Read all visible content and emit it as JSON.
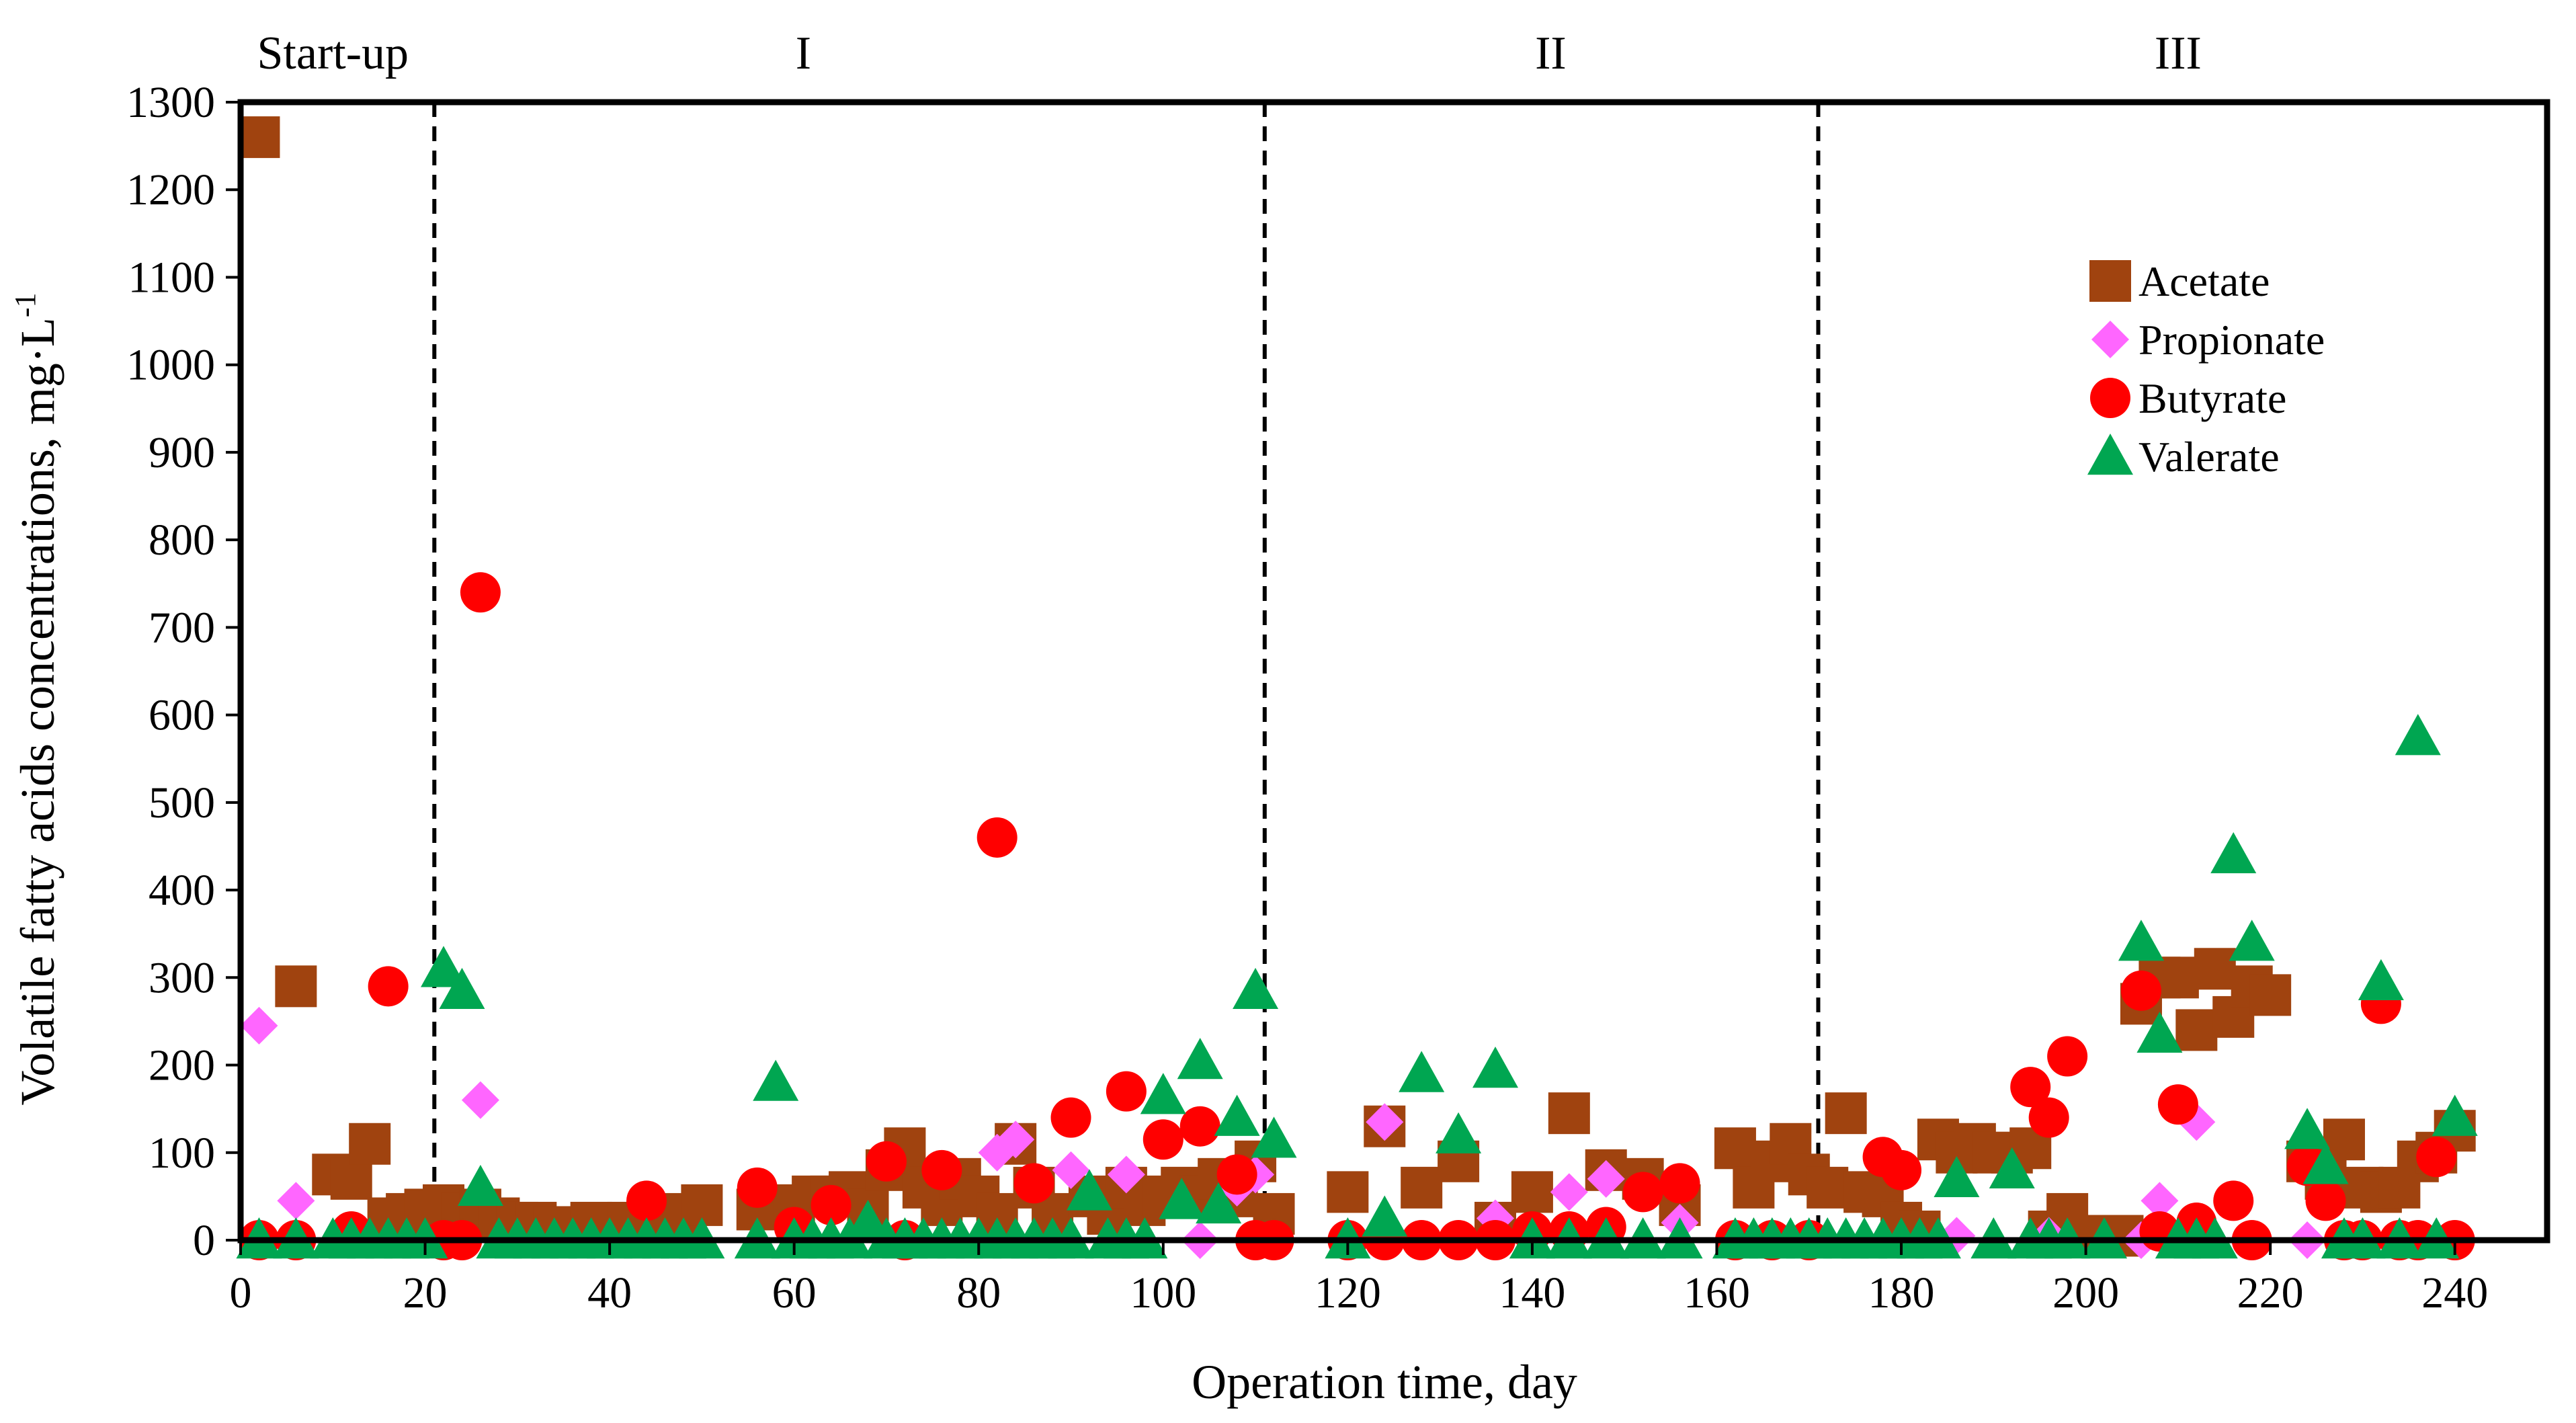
{
  "chart_data": {
    "type": "scatter",
    "title": "",
    "xlabel": "Operation time, day",
    "ylabel": "Volatile fatty acids concentrations, mg·L",
    "ylabel_superscript": "-1",
    "xlim": [
      0,
      250
    ],
    "ylim": [
      0,
      1300
    ],
    "xticks": [
      0,
      20,
      40,
      60,
      80,
      100,
      120,
      140,
      160,
      180,
      200,
      220,
      240
    ],
    "yticks": [
      0,
      100,
      200,
      300,
      400,
      500,
      600,
      700,
      800,
      900,
      1000,
      1100,
      1200,
      1300
    ],
    "grid": false,
    "legend_position": "top-right",
    "phase_boundaries": [
      21,
      111,
      171
    ],
    "phases": [
      {
        "label": "Start-up",
        "center": 10
      },
      {
        "label": "I",
        "center": 61
      },
      {
        "label": "II",
        "center": 142
      },
      {
        "label": "III",
        "center": 210
      }
    ],
    "series": [
      {
        "name": "Acetate",
        "marker": "square",
        "color": "#A0430F",
        "points": [
          [
            2,
            1260
          ],
          [
            6,
            290
          ],
          [
            10,
            75
          ],
          [
            12,
            70
          ],
          [
            14,
            110
          ],
          [
            16,
            25
          ],
          [
            18,
            30
          ],
          [
            20,
            35
          ],
          [
            22,
            40
          ],
          [
            24,
            30
          ],
          [
            26,
            35
          ],
          [
            28,
            25
          ],
          [
            30,
            20
          ],
          [
            32,
            20
          ],
          [
            34,
            15
          ],
          [
            36,
            15
          ],
          [
            38,
            20
          ],
          [
            40,
            15
          ],
          [
            42,
            20
          ],
          [
            44,
            20
          ],
          [
            46,
            20
          ],
          [
            48,
            30
          ],
          [
            50,
            40
          ],
          [
            56,
            35
          ],
          [
            60,
            40
          ],
          [
            62,
            50
          ],
          [
            64,
            50
          ],
          [
            66,
            55
          ],
          [
            68,
            35
          ],
          [
            70,
            80
          ],
          [
            72,
            105
          ],
          [
            74,
            60
          ],
          [
            76,
            40
          ],
          [
            78,
            70
          ],
          [
            80,
            50
          ],
          [
            82,
            30
          ],
          [
            84,
            110
          ],
          [
            86,
            60
          ],
          [
            88,
            30
          ],
          [
            92,
            50
          ],
          [
            94,
            30
          ],
          [
            96,
            60
          ],
          [
            98,
            40
          ],
          [
            100,
            50
          ],
          [
            102,
            60
          ],
          [
            104,
            50
          ],
          [
            106,
            70
          ],
          [
            108,
            50
          ],
          [
            110,
            90
          ],
          [
            112,
            30
          ],
          [
            120,
            55
          ],
          [
            124,
            130
          ],
          [
            128,
            60
          ],
          [
            132,
            90
          ],
          [
            136,
            20
          ],
          [
            140,
            55
          ],
          [
            144,
            145
          ],
          [
            148,
            80
          ],
          [
            152,
            70
          ],
          [
            156,
            40
          ],
          [
            162,
            105
          ],
          [
            164,
            60
          ],
          [
            166,
            90
          ],
          [
            168,
            110
          ],
          [
            170,
            75
          ],
          [
            172,
            60
          ],
          [
            174,
            145
          ],
          [
            176,
            55
          ],
          [
            178,
            50
          ],
          [
            180,
            20
          ],
          [
            182,
            10
          ],
          [
            184,
            115
          ],
          [
            186,
            100
          ],
          [
            188,
            110
          ],
          [
            190,
            100
          ],
          [
            192,
            100
          ],
          [
            194,
            105
          ],
          [
            196,
            10
          ],
          [
            198,
            30
          ],
          [
            200,
            5
          ],
          [
            204,
            5
          ],
          [
            206,
            270
          ],
          [
            208,
            300
          ],
          [
            210,
            300
          ],
          [
            212,
            240
          ],
          [
            214,
            310
          ],
          [
            216,
            255
          ],
          [
            218,
            290
          ],
          [
            220,
            280
          ],
          [
            224,
            90
          ],
          [
            226,
            70
          ],
          [
            228,
            115
          ],
          [
            230,
            60
          ],
          [
            232,
            55
          ],
          [
            234,
            60
          ],
          [
            236,
            90
          ],
          [
            238,
            100
          ],
          [
            240,
            125
          ]
        ]
      },
      {
        "name": "Propionate",
        "marker": "diamond",
        "color": "#FF66FF",
        "points": [
          [
            2,
            245
          ],
          [
            6,
            45
          ],
          [
            26,
            160
          ],
          [
            82,
            100
          ],
          [
            84,
            115
          ],
          [
            90,
            80
          ],
          [
            96,
            75
          ],
          [
            104,
            0
          ],
          [
            108,
            60
          ],
          [
            110,
            75
          ],
          [
            124,
            135
          ],
          [
            136,
            25
          ],
          [
            144,
            55
          ],
          [
            148,
            70
          ],
          [
            156,
            20
          ],
          [
            186,
            5
          ],
          [
            196,
            5
          ],
          [
            206,
            0
          ],
          [
            208,
            45
          ],
          [
            212,
            135
          ],
          [
            224,
            0
          ]
        ]
      },
      {
        "name": "Butyrate",
        "marker": "circle",
        "color": "#FF0000",
        "points": [
          [
            2,
            0
          ],
          [
            6,
            0
          ],
          [
            12,
            10
          ],
          [
            16,
            290
          ],
          [
            22,
            0
          ],
          [
            24,
            0
          ],
          [
            26,
            740
          ],
          [
            44,
            45
          ],
          [
            56,
            60
          ],
          [
            60,
            15
          ],
          [
            64,
            40
          ],
          [
            70,
            90
          ],
          [
            72,
            0
          ],
          [
            76,
            80
          ],
          [
            82,
            460
          ],
          [
            86,
            65
          ],
          [
            90,
            140
          ],
          [
            96,
            170
          ],
          [
            100,
            115
          ],
          [
            104,
            130
          ],
          [
            108,
            75
          ],
          [
            110,
            0
          ],
          [
            112,
            0
          ],
          [
            120,
            0
          ],
          [
            124,
            0
          ],
          [
            128,
            0
          ],
          [
            132,
            0
          ],
          [
            136,
            0
          ],
          [
            140,
            10
          ],
          [
            144,
            10
          ],
          [
            148,
            15
          ],
          [
            152,
            55
          ],
          [
            156,
            65
          ],
          [
            162,
            0
          ],
          [
            166,
            0
          ],
          [
            170,
            0
          ],
          [
            178,
            95
          ],
          [
            180,
            80
          ],
          [
            194,
            175
          ],
          [
            196,
            140
          ],
          [
            198,
            210
          ],
          [
            206,
            285
          ],
          [
            208,
            10
          ],
          [
            210,
            155
          ],
          [
            212,
            20
          ],
          [
            216,
            45
          ],
          [
            218,
            0
          ],
          [
            224,
            85
          ],
          [
            226,
            45
          ],
          [
            228,
            0
          ],
          [
            230,
            0
          ],
          [
            232,
            270
          ],
          [
            234,
            0
          ],
          [
            236,
            0
          ],
          [
            238,
            95
          ],
          [
            240,
            0
          ]
        ]
      },
      {
        "name": "Valerate",
        "marker": "triangle",
        "color": "#00A651",
        "points": [
          [
            2,
            0
          ],
          [
            6,
            0
          ],
          [
            10,
            0
          ],
          [
            12,
            0
          ],
          [
            14,
            0
          ],
          [
            16,
            0
          ],
          [
            18,
            0
          ],
          [
            20,
            0
          ],
          [
            22,
            310
          ],
          [
            24,
            285
          ],
          [
            26,
            60
          ],
          [
            28,
            0
          ],
          [
            30,
            0
          ],
          [
            32,
            0
          ],
          [
            34,
            0
          ],
          [
            36,
            0
          ],
          [
            38,
            0
          ],
          [
            40,
            0
          ],
          [
            42,
            0
          ],
          [
            44,
            0
          ],
          [
            46,
            0
          ],
          [
            48,
            0
          ],
          [
            50,
            0
          ],
          [
            56,
            0
          ],
          [
            58,
            180
          ],
          [
            60,
            0
          ],
          [
            62,
            0
          ],
          [
            64,
            0
          ],
          [
            66,
            0
          ],
          [
            68,
            20
          ],
          [
            70,
            0
          ],
          [
            72,
            0
          ],
          [
            74,
            0
          ],
          [
            76,
            0
          ],
          [
            78,
            0
          ],
          [
            80,
            0
          ],
          [
            82,
            0
          ],
          [
            84,
            0
          ],
          [
            86,
            0
          ],
          [
            88,
            0
          ],
          [
            90,
            0
          ],
          [
            92,
            55
          ],
          [
            94,
            0
          ],
          [
            96,
            0
          ],
          [
            98,
            0
          ],
          [
            100,
            165
          ],
          [
            102,
            45
          ],
          [
            104,
            205
          ],
          [
            106,
            40
          ],
          [
            108,
            140
          ],
          [
            110,
            285
          ],
          [
            112,
            115
          ],
          [
            120,
            0
          ],
          [
            124,
            25
          ],
          [
            128,
            190
          ],
          [
            132,
            120
          ],
          [
            136,
            195
          ],
          [
            140,
            0
          ],
          [
            144,
            0
          ],
          [
            148,
            0
          ],
          [
            152,
            0
          ],
          [
            156,
            0
          ],
          [
            162,
            0
          ],
          [
            164,
            0
          ],
          [
            166,
            0
          ],
          [
            168,
            0
          ],
          [
            170,
            0
          ],
          [
            172,
            0
          ],
          [
            174,
            0
          ],
          [
            176,
            0
          ],
          [
            178,
            0
          ],
          [
            180,
            0
          ],
          [
            182,
            0
          ],
          [
            184,
            0
          ],
          [
            186,
            70
          ],
          [
            190,
            0
          ],
          [
            192,
            80
          ],
          [
            194,
            0
          ],
          [
            196,
            0
          ],
          [
            198,
            0
          ],
          [
            202,
            0
          ],
          [
            206,
            340
          ],
          [
            208,
            235
          ],
          [
            210,
            0
          ],
          [
            212,
            0
          ],
          [
            214,
            0
          ],
          [
            216,
            440
          ],
          [
            218,
            340
          ],
          [
            224,
            125
          ],
          [
            226,
            85
          ],
          [
            228,
            0
          ],
          [
            230,
            0
          ],
          [
            232,
            295
          ],
          [
            234,
            0
          ],
          [
            236,
            575
          ],
          [
            238,
            0
          ],
          [
            240,
            140
          ]
        ]
      }
    ]
  }
}
